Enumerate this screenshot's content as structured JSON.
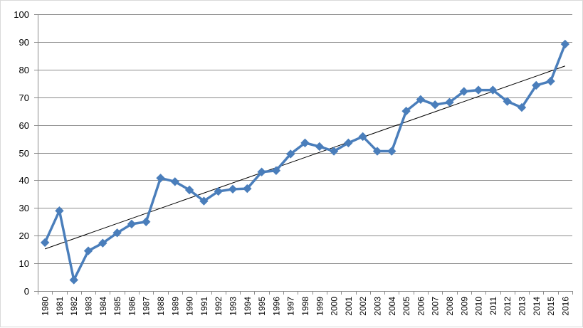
{
  "chart_data": {
    "type": "line",
    "title": "",
    "xlabel": "",
    "ylabel": "",
    "ylim": [
      0,
      100
    ],
    "yticks": [
      0,
      10,
      20,
      30,
      40,
      50,
      60,
      70,
      80,
      90,
      100
    ],
    "grid": "horizontal",
    "legend": "none",
    "categories": [
      "1980",
      "1981",
      "1982",
      "1983",
      "1984",
      "1985",
      "1986",
      "1987",
      "1988",
      "1989",
      "1990",
      "1991",
      "1992",
      "1993",
      "1994",
      "1995",
      "1996",
      "1997",
      "1998",
      "1999",
      "2000",
      "2001",
      "2002",
      "2003",
      "2004",
      "2005",
      "2006",
      "2007",
      "2008",
      "2009",
      "2010",
      "2011",
      "2012",
      "2013",
      "2014",
      "2015",
      "2016"
    ],
    "series": [
      {
        "values": [
          17.5,
          29,
          4,
          14.5,
          17.3,
          21,
          24.2,
          25,
          40.8,
          39.5,
          36.5,
          32.5,
          36,
          36.8,
          37,
          43,
          43.5,
          49.5,
          53.5,
          52.2,
          50.5,
          53.5,
          55.8,
          50.5,
          50.5,
          65,
          69.2,
          67.3,
          68.2,
          72.1,
          72.6,
          72.6,
          68.5,
          66.3,
          74.3,
          75.8,
          89.2
        ],
        "color": "#4a7ebb",
        "marker": "diamond"
      }
    ],
    "trendline": {
      "kind": "linear",
      "start": 15.2,
      "end": 81.3,
      "color": "#000000"
    }
  }
}
